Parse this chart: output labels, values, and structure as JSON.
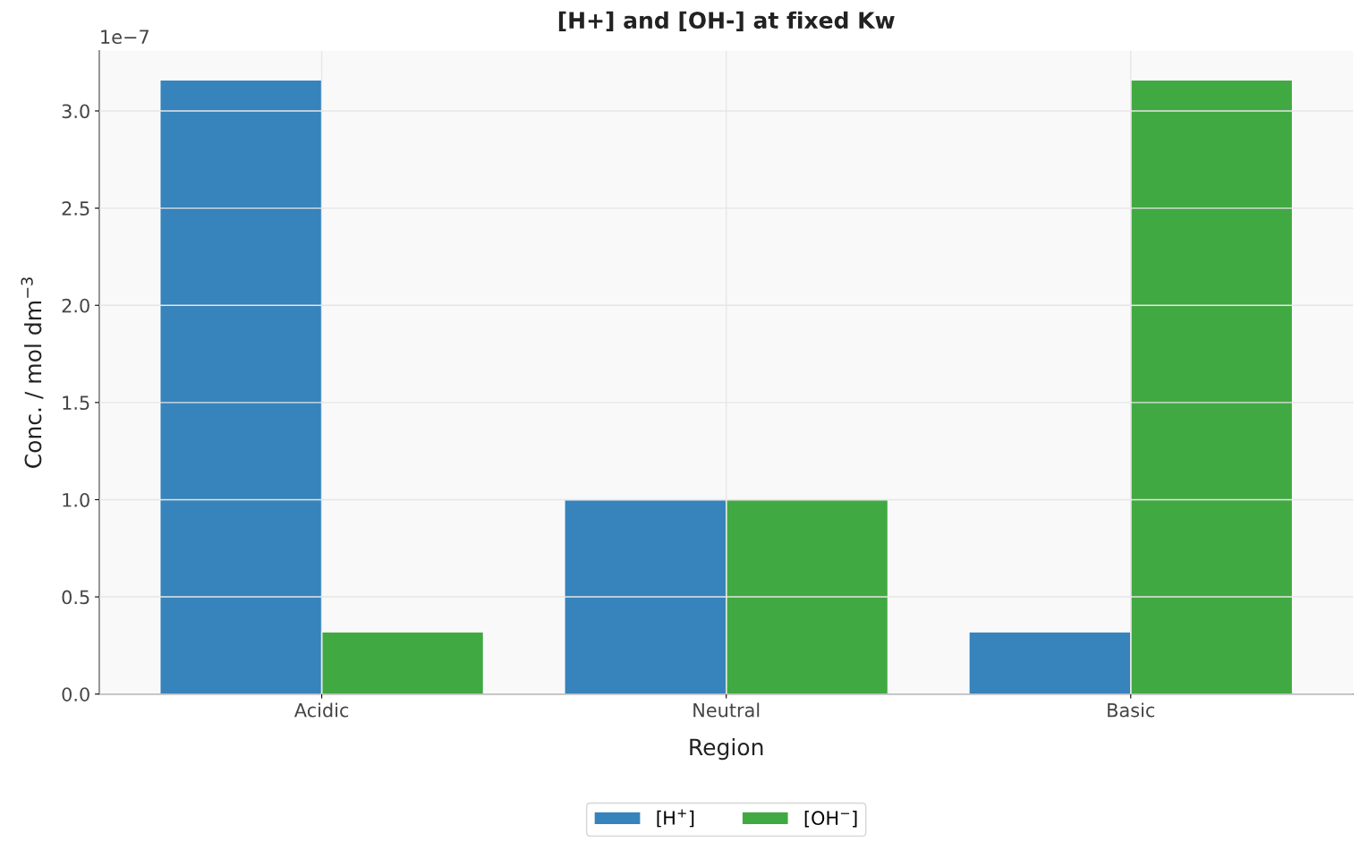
{
  "chart_data": {
    "type": "bar",
    "title": "[H+] and [OH-] at fixed Kw",
    "xlabel": "Region",
    "ylabel": "Conc. / mol dm$^{−3}$",
    "categories": [
      "Acidic",
      "Neutral",
      "Basic"
    ],
    "series": [
      {
        "name": "[H$^{+}$]",
        "color": "#3783bb",
        "values": [
          3.16,
          1.0,
          0.32
        ]
      },
      {
        "name": "[OH$^{−}$]",
        "color": "#41a942",
        "values": [
          0.32,
          1.0,
          3.16
        ]
      }
    ],
    "ylim": [
      0,
      3.31
    ],
    "yticks": [
      {
        "value": 0,
        "label": "0.0"
      },
      0.5,
      {
        "value": 1,
        "label": "1.0"
      },
      1.5,
      {
        "value": 2,
        "label": "2.0"
      },
      2.5,
      {
        "value": 3,
        "label": "3.0"
      }
    ],
    "annotations": [
      "1e−7"
    ],
    "grid": true,
    "legend": "bottom"
  }
}
